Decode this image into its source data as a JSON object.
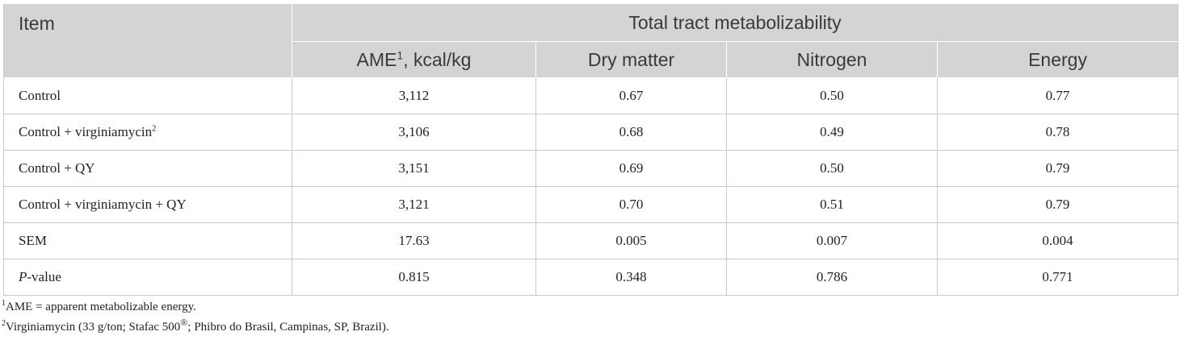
{
  "table": {
    "header": {
      "item": "Item",
      "group": "Total tract metabolizability",
      "columns": [
        {
          "label": "AME",
          "sup": "1",
          "suffix": ", kcal/kg"
        },
        {
          "label": "Dry matter"
        },
        {
          "label": "Nitrogen"
        },
        {
          "label": "Energy"
        }
      ]
    },
    "rows": [
      {
        "label": "Control",
        "label_sup": "",
        "label_suffix": "",
        "values": [
          "3,112",
          "0.67",
          "0.50",
          "0.77"
        ]
      },
      {
        "label": "Control + virginiamycin",
        "label_sup": "2",
        "label_suffix": "",
        "values": [
          "3,106",
          "0.68",
          "0.49",
          "0.78"
        ]
      },
      {
        "label": "Control + QY",
        "label_sup": "",
        "label_suffix": "",
        "values": [
          "3,151",
          "0.69",
          "0.50",
          "0.79"
        ]
      },
      {
        "label": "Control + virginiamycin + QY",
        "label_sup": "",
        "label_suffix": "",
        "values": [
          "3,121",
          "0.70",
          "0.51",
          "0.79"
        ]
      },
      {
        "label": "SEM",
        "label_sup": "",
        "label_suffix": "",
        "values": [
          "17.63",
          "0.005",
          "0.007",
          "0.004"
        ]
      },
      {
        "label": "P",
        "label_italic": true,
        "label_sup": "",
        "label_suffix": "-value",
        "values": [
          "0.815",
          "0.348",
          "0.786",
          "0.771"
        ]
      }
    ]
  },
  "footnotes": [
    {
      "mark": "1",
      "text": "AME = apparent metabolizable energy."
    },
    {
      "mark": "2",
      "text_before": "Virginiamycin (33 g/ton; Stafac 500",
      "symbol": "®",
      "text_after": "; Phibro do Brasil, Campinas, SP, Brazil)."
    }
  ]
}
